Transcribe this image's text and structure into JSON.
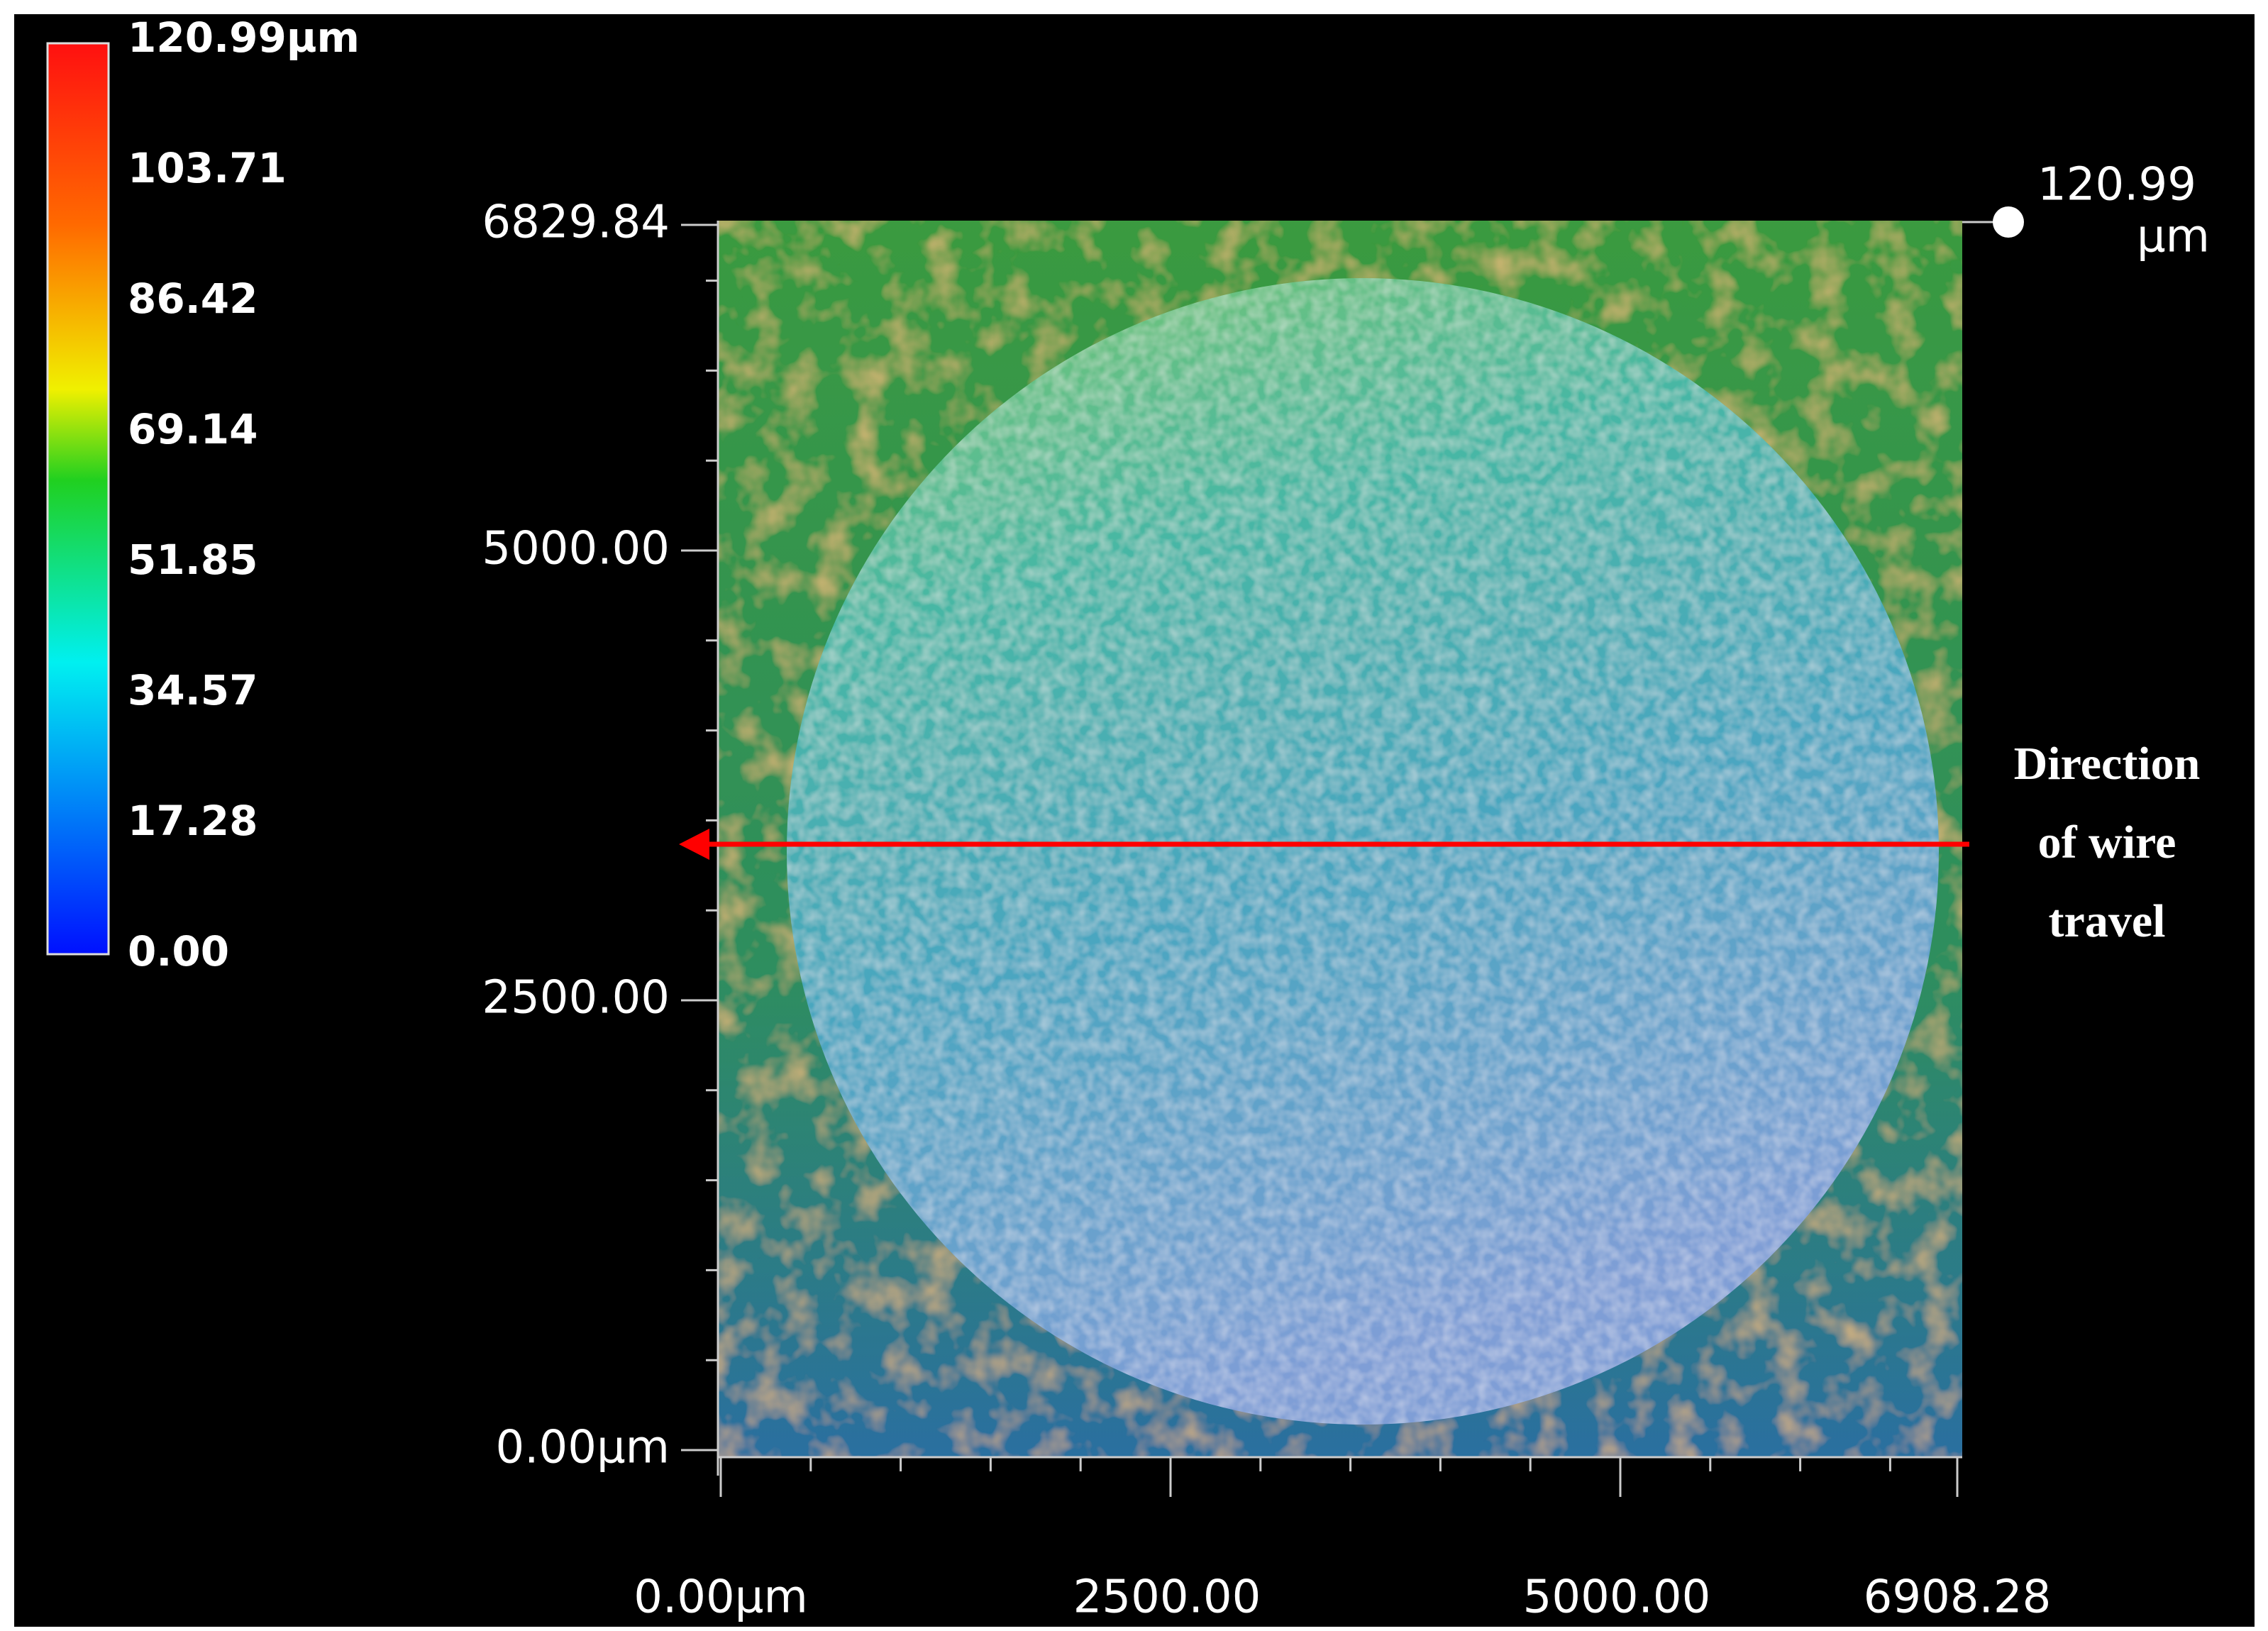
{
  "colorbar": {
    "labels": [
      "120.99µm",
      "103.71",
      "86.42",
      "69.14",
      "51.85",
      "34.57",
      "17.28",
      "0.00"
    ]
  },
  "y_axis": {
    "labels": [
      "6829.84",
      "5000.00",
      "2500.00",
      "0.00µm"
    ]
  },
  "x_axis": {
    "labels": [
      "0.00µm",
      "2500.00",
      "5000.00",
      "6908.28"
    ]
  },
  "max_marker": {
    "value": "120.99",
    "unit": "µm"
  },
  "annotation": {
    "lines": [
      "Direction",
      "of wire",
      "travel"
    ]
  }
}
